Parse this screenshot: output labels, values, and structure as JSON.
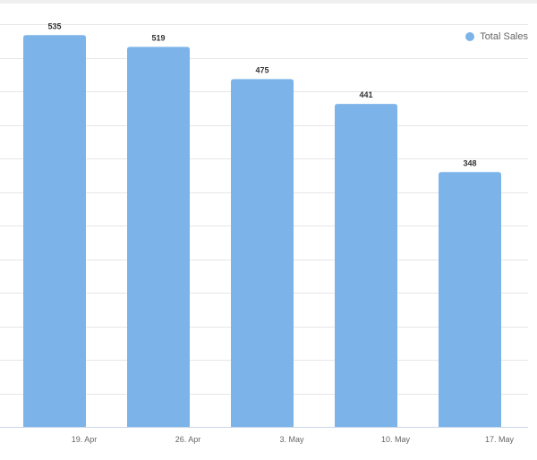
{
  "chart_data": {
    "type": "bar",
    "categories": [
      "19. Apr",
      "26. Apr",
      "3. May",
      "10. May",
      "17. May"
    ],
    "series": [
      {
        "name": "Total Sales",
        "values": [
          535,
          519,
          475,
          441,
          348
        ]
      }
    ],
    "ylim": [
      0,
      550
    ],
    "grid": true,
    "legend_position": "top-right",
    "colors": {
      "bar": "#7cb4ea",
      "grid": "#e6e6e6",
      "axis": "#ccd6eb",
      "data_label": "#333333",
      "tick_label": "#666666"
    }
  },
  "legend": {
    "label": "Total Sales"
  }
}
